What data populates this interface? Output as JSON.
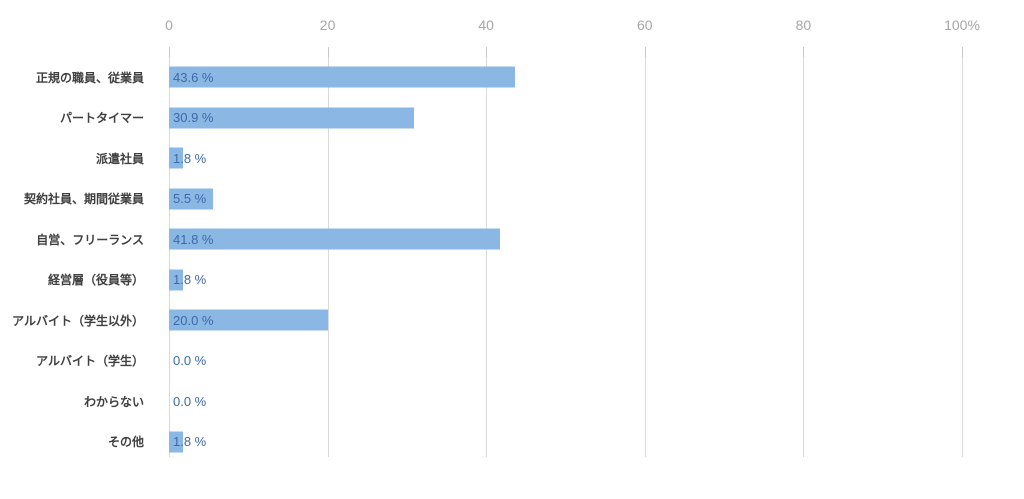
{
  "chart_data": {
    "type": "bar",
    "orientation": "horizontal",
    "title": "",
    "xlabel": "",
    "ylabel": "",
    "xlim": [
      0,
      100
    ],
    "grid": true,
    "legend": false,
    "x_ticks": [
      0,
      20,
      40,
      60,
      80,
      100
    ],
    "x_tick_labels": [
      "0",
      "20",
      "40",
      "60",
      "80",
      "100%"
    ],
    "categories": [
      "正規の職員、従業員",
      "パートタイマー",
      "派遣社員",
      "契約社員、期間従業員",
      "自営、フリーランス",
      "経営層（役員等）",
      "アルバイト（学生以外）",
      "アルバイト（学生）",
      "わからない",
      "その他"
    ],
    "values": [
      43.6,
      30.9,
      1.8,
      5.5,
      41.8,
      1.8,
      20.0,
      0.0,
      0.0,
      1.8
    ],
    "value_labels": [
      "43.6 %",
      "30.9 %",
      "1.8 %",
      "5.5 %",
      "41.8 %",
      "1.8 %",
      "20.0 %",
      "0.0 %",
      "0.0 %",
      "1.8 %"
    ]
  },
  "colors": {
    "background": "#ffffff",
    "bar_fill": "#8bb7e5",
    "value_label": "#3c69a8",
    "category_label": "#404040",
    "tick_label": "#a6a6a6",
    "gridline": "#d9d9d9",
    "tickmark": "#c9c9c9"
  }
}
